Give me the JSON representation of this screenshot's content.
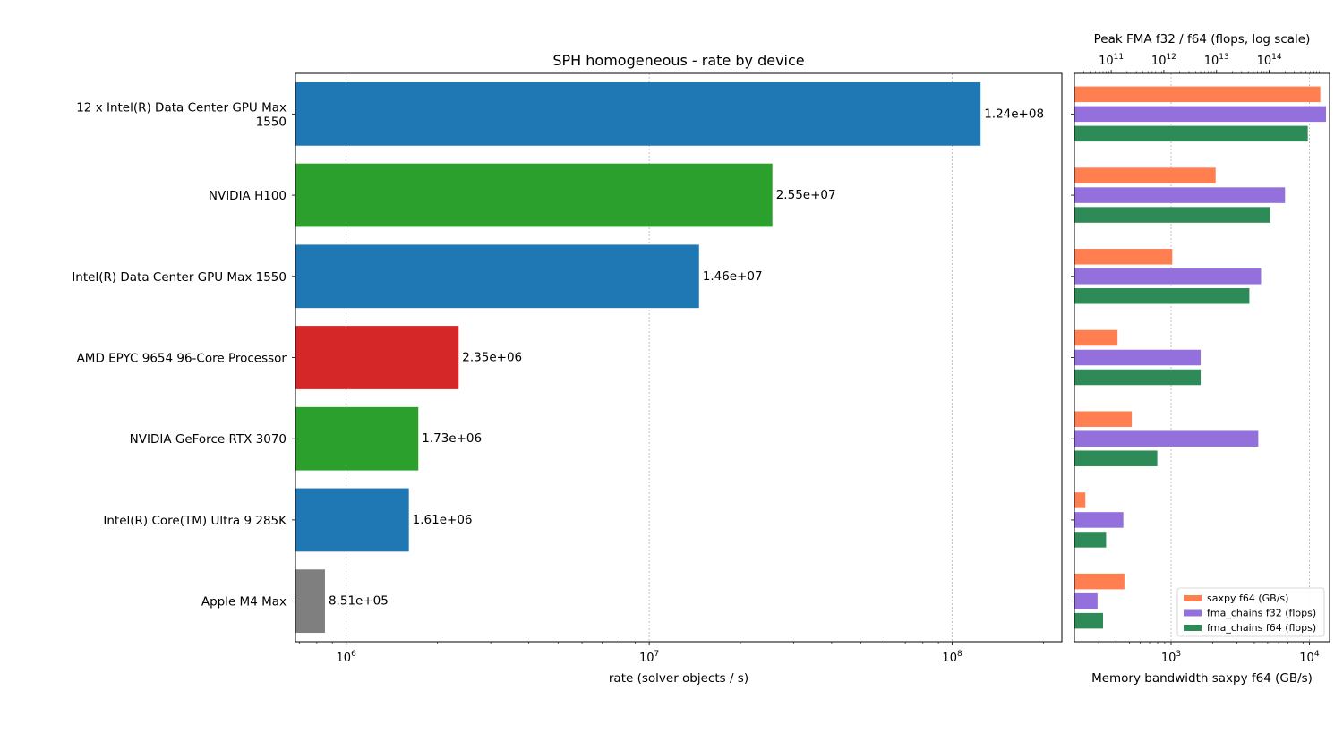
{
  "figure": {
    "background": "#ffffff"
  },
  "chart_data": [
    {
      "type": "bar",
      "orientation": "horizontal",
      "title": "SPH homogeneous - rate by device",
      "xlabel": "rate (solver objects / s)",
      "xscale": "log",
      "xlim": [
        680000,
        230000000
      ],
      "x_ticks": [
        {
          "base": "10",
          "exp": "6",
          "value": 1000000
        },
        {
          "base": "10",
          "exp": "7",
          "value": 10000000
        },
        {
          "base": "10",
          "exp": "8",
          "value": 100000000
        }
      ],
      "grid": "x",
      "categories": [
        "12 x Intel(R) Data Center GPU Max 1550",
        "NVIDIA H100",
        "Intel(R) Data Center GPU Max 1550",
        "AMD EPYC 9654 96-Core Processor",
        "NVIDIA GeForce RTX 3070",
        "Intel(R) Core(TM) Ultra 9 285K",
        "Apple M4 Max"
      ],
      "category_lines": [
        [
          "12 x Intel(R) Data Center GPU Max",
          "1550"
        ],
        [
          "NVIDIA H100"
        ],
        [
          "Intel(R) Data Center GPU Max 1550"
        ],
        [
          "AMD EPYC 9654 96-Core Processor"
        ],
        [
          "NVIDIA GeForce RTX 3070"
        ],
        [
          "Intel(R) Core(TM) Ultra 9 285K"
        ],
        [
          "Apple M4 Max"
        ]
      ],
      "values": [
        124000000,
        25500000,
        14600000,
        2350000,
        1730000,
        1610000,
        851000
      ],
      "value_labels": [
        "1.24e+08",
        "2.55e+07",
        "1.46e+07",
        "2.35e+06",
        "1.73e+06",
        "1.61e+06",
        "8.51e+05"
      ],
      "colors": [
        "#1f77b4",
        "#2ca02c",
        "#1f77b4",
        "#d62728",
        "#2ca02c",
        "#1f77b4",
        "#7f7f7f"
      ]
    },
    {
      "type": "bar",
      "orientation": "horizontal",
      "xlabel": "Memory bandwidth saxpy f64 (GB/s)",
      "xscale": "log",
      "xlim": [
        200,
        14000
      ],
      "x_ticks": [
        {
          "base": "10",
          "exp": "3",
          "value": 1000
        },
        {
          "base": "10",
          "exp": "4",
          "value": 10000
        }
      ],
      "top_axis": {
        "label": "Peak FMA f32 / f64 (flops, log scale)",
        "xscale": "log",
        "xlim": [
          20000000000,
          1400000000000000
        ],
        "ticks": [
          {
            "base": "10",
            "exp": "11",
            "value": 100000000000
          },
          {
            "base": "10",
            "exp": "12",
            "value": 1000000000000
          },
          {
            "base": "10",
            "exp": "13",
            "value": 10000000000000
          },
          {
            "base": "10",
            "exp": "14",
            "value": 100000000000000
          }
        ]
      },
      "grid": "x",
      "legend_position": "lower-right",
      "series": [
        {
          "name": "saxpy f64 (GB/s)",
          "color": "#ff7f50",
          "axis": "bottom",
          "values": [
            12000,
            2100,
            1020,
            410,
            520,
            240,
            460
          ]
        },
        {
          "name": "fma_chains f32 (flops)",
          "color": "#9370db",
          "axis": "top",
          "values": [
            1200000000000000,
            200000000000000,
            70000000000000,
            5000000000000,
            62000000000000,
            170000000000,
            55000000000
          ]
        },
        {
          "name": "fma_chains f64 (flops)",
          "color": "#2e8b57",
          "axis": "top",
          "values": [
            540000000000000,
            105000000000000,
            42000000000000,
            5000000000000,
            750000000000,
            80000000000,
            70000000000
          ]
        }
      ]
    }
  ]
}
